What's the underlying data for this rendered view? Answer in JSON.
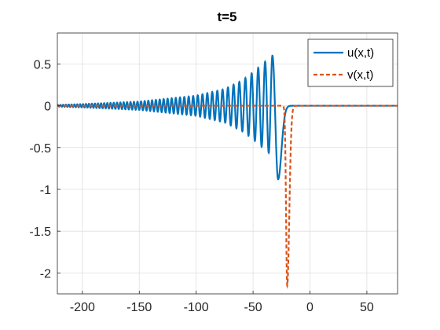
{
  "chart_data": {
    "type": "line",
    "title": "t=5",
    "xlabel": "",
    "ylabel": "",
    "xlim": [
      -222,
      77
    ],
    "ylim": [
      -2.25,
      0.87
    ],
    "xticks": [
      -200,
      -150,
      -100,
      -50,
      0,
      50
    ],
    "xtick_labels": [
      "-200",
      "-150",
      "-100",
      "-50",
      "0",
      "50"
    ],
    "yticks": [
      0.5,
      0,
      -0.5,
      -1,
      -1.5,
      -2
    ],
    "ytick_labels": [
      "0.5",
      "0",
      "-0.5",
      "-1",
      "-1.5",
      "-2"
    ],
    "grid": true,
    "legend_position": "top-right",
    "series": [
      {
        "name": "u(x,t)",
        "color": "#0072BD",
        "style": "solid",
        "description": "oscillatory wave packet, amplitude growing toward x≈-33 (peak ≈0.6), trough ≈-0.88 near x≈-28, flat 0 for x>-15",
        "envelope_points": [
          [
            -222,
            0.01
          ],
          [
            -200,
            0.02
          ],
          [
            -150,
            0.05
          ],
          [
            -100,
            0.12
          ],
          [
            -75,
            0.2
          ],
          [
            -60,
            0.3
          ],
          [
            -50,
            0.4
          ],
          [
            -40,
            0.52
          ],
          [
            -33,
            0.6
          ]
        ],
        "trough": [
          -28,
          -0.88
        ]
      },
      {
        "name": "v(x,t)",
        "color": "#D95319",
        "style": "dashed",
        "description": "zero except a sharp negative spike",
        "spike_center": -20,
        "spike_min": -2.15
      }
    ]
  }
}
